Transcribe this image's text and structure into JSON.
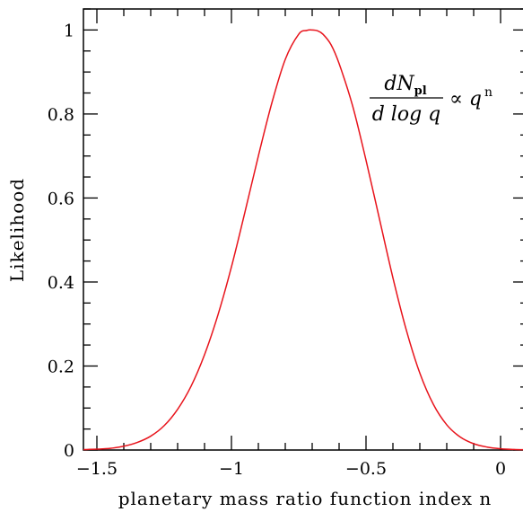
{
  "chart_data": {
    "type": "line",
    "xlabel": "planetary mass ratio function index n",
    "ylabel": "Likelihood",
    "xlim": [
      -1.55,
      0.1
    ],
    "ylim": [
      0,
      1.05
    ],
    "x_ticks": [
      -1.5,
      -1,
      -0.5,
      0
    ],
    "x_tick_labels": [
      "−1.5",
      "−1",
      "−0.5",
      "0"
    ],
    "y_ticks": [
      0,
      0.2,
      0.4,
      0.6,
      0.8,
      1
    ],
    "y_tick_labels": [
      "0",
      "0.2",
      "0.4",
      "0.6",
      "0.8",
      "1"
    ],
    "grid": false,
    "series": [
      {
        "color": "#e8141c",
        "x": [
          -1.55,
          -1.5,
          -1.45,
          -1.4,
          -1.35,
          -1.3,
          -1.25,
          -1.2,
          -1.15,
          -1.1,
          -1.05,
          -1.0,
          -0.95,
          -0.9,
          -0.85,
          -0.8,
          -0.75,
          -0.72,
          -0.7,
          -0.68,
          -0.66,
          -0.63,
          -0.6,
          -0.55,
          -0.5,
          -0.45,
          -0.4,
          -0.35,
          -0.3,
          -0.25,
          -0.2,
          -0.15,
          -0.1,
          -0.05,
          0.0,
          0.05,
          0.1
        ],
        "values": [
          0.001,
          0.002,
          0.004,
          0.009,
          0.018,
          0.033,
          0.058,
          0.097,
          0.152,
          0.227,
          0.322,
          0.436,
          0.566,
          0.7,
          0.826,
          0.93,
          0.99,
          0.999,
          1.0,
          0.998,
          0.99,
          0.965,
          0.92,
          0.82,
          0.69,
          0.55,
          0.41,
          0.285,
          0.183,
          0.109,
          0.06,
          0.031,
          0.015,
          0.007,
          0.003,
          0.0013,
          0.0005
        ]
      }
    ],
    "annotation": {
      "numerator": "dN",
      "numerator_sub": "pl",
      "denominator": "d log q",
      "relation": "∝ q",
      "exponent": "n"
    }
  }
}
